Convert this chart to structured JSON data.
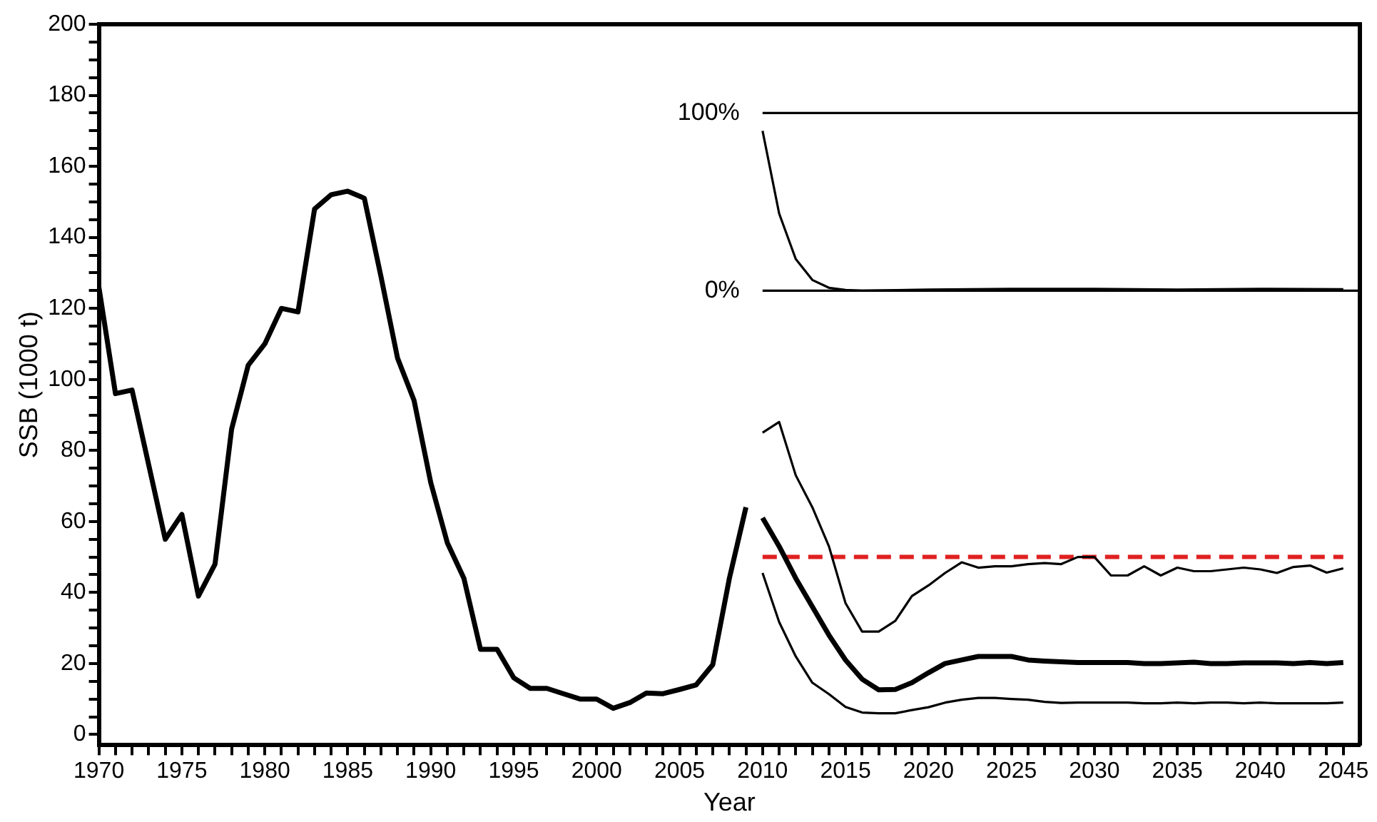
{
  "chart_data": {
    "type": "line",
    "xlabel": "Year",
    "ylabel": "SSB (1000 t)",
    "xlim": [
      1970,
      2046
    ],
    "ylim": [
      -3,
      200
    ],
    "xticks": [
      1970,
      {
        "value": 1971,
        "label": null
      },
      {
        "value": 1972,
        "label": null
      },
      {
        "value": 1973,
        "label": null
      },
      {
        "value": 1974,
        "label": null
      },
      1975,
      {
        "value": 1976,
        "label": null
      },
      {
        "value": 1977,
        "label": null
      },
      {
        "value": 1978,
        "label": null
      },
      {
        "value": 1979,
        "label": null
      },
      1980,
      {
        "value": 1981,
        "label": null
      },
      {
        "value": 1982,
        "label": null
      },
      {
        "value": 1983,
        "label": null
      },
      {
        "value": 1984,
        "label": null
      },
      1985,
      {
        "value": 1986,
        "label": null
      },
      {
        "value": 1987,
        "label": null
      },
      {
        "value": 1988,
        "label": null
      },
      {
        "value": 1989,
        "label": null
      },
      1990,
      {
        "value": 1991,
        "label": null
      },
      {
        "value": 1992,
        "label": null
      },
      {
        "value": 1993,
        "label": null
      },
      {
        "value": 1994,
        "label": null
      },
      1995,
      {
        "value": 1996,
        "label": null
      },
      {
        "value": 1997,
        "label": null
      },
      {
        "value": 1998,
        "label": null
      },
      {
        "value": 1999,
        "label": null
      },
      2000,
      {
        "value": 2001,
        "label": null
      },
      {
        "value": 2002,
        "label": null
      },
      {
        "value": 2003,
        "label": null
      },
      {
        "value": 2004,
        "label": null
      },
      2005,
      {
        "value": 2006,
        "label": null
      },
      {
        "value": 2007,
        "label": null
      },
      {
        "value": 2008,
        "label": null
      },
      {
        "value": 2009,
        "label": null
      },
      2010,
      {
        "value": 2011,
        "label": null
      },
      {
        "value": 2012,
        "label": null
      },
      {
        "value": 2013,
        "label": null
      },
      {
        "value": 2014,
        "label": null
      },
      2015,
      {
        "value": 2016,
        "label": null
      },
      {
        "value": 2017,
        "label": null
      },
      {
        "value": 2018,
        "label": null
      },
      {
        "value": 2019,
        "label": null
      },
      2020,
      {
        "value": 2021,
        "label": null
      },
      {
        "value": 2022,
        "label": null
      },
      {
        "value": 2023,
        "label": null
      },
      {
        "value": 2024,
        "label": null
      },
      2025,
      {
        "value": 2026,
        "label": null
      },
      {
        "value": 2027,
        "label": null
      },
      {
        "value": 2028,
        "label": null
      },
      {
        "value": 2029,
        "label": null
      },
      2030,
      {
        "value": 2031,
        "label": null
      },
      {
        "value": 2032,
        "label": null
      },
      {
        "value": 2033,
        "label": null
      },
      {
        "value": 2034,
        "label": null
      },
      2035,
      {
        "value": 2036,
        "label": null
      },
      {
        "value": 2037,
        "label": null
      },
      {
        "value": 2038,
        "label": null
      },
      {
        "value": 2039,
        "label": null
      },
      2040,
      {
        "value": 2041,
        "label": null
      },
      {
        "value": 2042,
        "label": null
      },
      {
        "value": 2043,
        "label": null
      },
      {
        "value": 2044,
        "label": null
      },
      2045
    ],
    "yticks": [
      0,
      {
        "value": 5,
        "label": null
      },
      {
        "value": 10,
        "label": null
      },
      {
        "value": 15,
        "label": null
      },
      20,
      {
        "value": 25,
        "label": null
      },
      {
        "value": 30,
        "label": null
      },
      {
        "value": 35,
        "label": null
      },
      40,
      {
        "value": 45,
        "label": null
      },
      {
        "value": 50,
        "label": null
      },
      {
        "value": 55,
        "label": null
      },
      60,
      {
        "value": 65,
        "label": null
      },
      {
        "value": 70,
        "label": null
      },
      {
        "value": 75,
        "label": null
      },
      80,
      {
        "value": 85,
        "label": null
      },
      {
        "value": 90,
        "label": null
      },
      {
        "value": 95,
        "label": null
      },
      100,
      {
        "value": 105,
        "label": null
      },
      {
        "value": 110,
        "label": null
      },
      {
        "value": 115,
        "label": null
      },
      120,
      {
        "value": 125,
        "label": null
      },
      {
        "value": 130,
        "label": null
      },
      {
        "value": 135,
        "label": null
      },
      140,
      {
        "value": 145,
        "label": null
      },
      {
        "value": 150,
        "label": null
      },
      {
        "value": 155,
        "label": null
      },
      160,
      {
        "value": 165,
        "label": null
      },
      {
        "value": 170,
        "label": null
      },
      {
        "value": 175,
        "label": null
      },
      180,
      {
        "value": 185,
        "label": null
      },
      {
        "value": 190,
        "label": null
      },
      {
        "value": 195,
        "label": null
      },
      200
    ],
    "series": [
      {
        "color": "#000000",
        "x": [
          1970,
          1971,
          1972,
          1973,
          1974,
          1975,
          1976,
          1977,
          1978,
          1979,
          1980,
          1981,
          1982,
          1983,
          1984,
          1985,
          1986,
          1987,
          1988,
          1989,
          1990,
          1991,
          1992,
          1993,
          1994,
          1995,
          1996,
          1997,
          1998,
          1999,
          2000,
          2001,
          2002,
          2003,
          2004,
          2005,
          2006,
          2007,
          2008,
          2009
        ],
        "values": [
          126,
          96,
          97,
          76,
          55,
          62,
          39,
          48,
          86,
          104,
          110,
          120,
          119,
          148,
          152,
          153,
          151,
          129,
          106,
          94,
          71,
          54,
          44,
          24,
          24,
          16,
          13,
          13,
          11.5,
          10,
          10,
          7.4,
          9,
          11.7,
          11.5,
          12.7,
          14,
          19.7,
          44,
          64
        ]
      },
      {
        "color": "#000000",
        "x": [
          2010,
          2011,
          2012,
          2013,
          2014,
          2015,
          2016,
          2017,
          2018,
          2019,
          2020,
          2021,
          2022,
          2023,
          2024,
          2025,
          2026,
          2027,
          2028,
          2029,
          2030,
          2031,
          2032,
          2033,
          2034,
          2035,
          2036,
          2037,
          2038,
          2039,
          2040,
          2041,
          2042,
          2043,
          2044,
          2045
        ],
        "values": [
          61,
          53,
          44,
          36,
          28,
          21,
          15.6,
          12.6,
          12.7,
          14.6,
          17.4,
          20,
          21,
          22,
          22,
          22,
          21,
          20.7,
          20.5,
          20.3,
          20.3,
          20.3,
          20.3,
          20,
          20,
          20.2,
          20.4,
          20,
          20,
          20.2,
          20.2,
          20.2,
          20,
          20.3,
          20,
          20.3
        ]
      },
      {
        "color": "#000000",
        "x": [
          2010,
          2011,
          2012,
          2013,
          2014,
          2015,
          2016,
          2017,
          2018,
          2019,
          2020,
          2021,
          2022,
          2023,
          2024,
          2025,
          2026,
          2027,
          2028,
          2029,
          2030,
          2031,
          2032,
          2033,
          2034,
          2035,
          2036,
          2037,
          2038,
          2039,
          2040,
          2041,
          2042,
          2043,
          2044,
          2045
        ],
        "values": [
          85,
          88,
          73,
          64,
          53,
          37,
          29,
          29,
          32,
          39,
          42,
          45.5,
          48.5,
          47,
          47.4,
          47.4,
          48,
          48.3,
          48,
          50,
          50,
          44.8,
          44.8,
          47.4,
          44.8,
          47,
          46,
          46,
          46.5,
          47,
          46.5,
          45.5,
          47.2,
          47.6,
          45.6,
          46.8
        ]
      },
      {
        "color": "#000000",
        "x": [
          2010,
          2011,
          2012,
          2013,
          2014,
          2015,
          2016,
          2017,
          2018,
          2019,
          2020,
          2021,
          2022,
          2023,
          2024,
          2025,
          2026,
          2027,
          2028,
          2029,
          2030,
          2031,
          2032,
          2033,
          2034,
          2035,
          2036,
          2037,
          2038,
          2039,
          2040,
          2041,
          2042,
          2043,
          2044,
          2045
        ],
        "values": [
          45.5,
          31.7,
          22,
          14.6,
          11.4,
          7.8,
          6.2,
          6,
          6,
          6.9,
          7.7,
          9,
          9.8,
          10.3,
          10.3,
          10,
          9.8,
          9.2,
          8.9,
          9,
          9,
          9,
          9,
          8.8,
          8.8,
          9,
          8.8,
          9,
          9,
          8.8,
          9,
          8.8,
          8.8,
          8.8,
          8.8,
          9
        ]
      },
      {
        "color": "#e02020",
        "line_style": "dashed",
        "x": [
          2010,
          2045
        ],
        "values": [
          50,
          50
        ]
      },
      {
        "color": "#000000",
        "x": [
          2010,
          2046
        ],
        "values": [
          175,
          175
        ]
      },
      {
        "color": "#000000",
        "x": [
          2010,
          2046
        ],
        "values": [
          125,
          125
        ]
      },
      {
        "color": "#000000",
        "x": [
          2010,
          2011,
          2012,
          2013,
          2014,
          2015,
          2016,
          2020,
          2025,
          2030,
          2035,
          2040,
          2045
        ],
        "values": [
          170,
          146.7,
          133.9,
          128,
          125.8,
          125.2,
          125,
          125.3,
          125.5,
          125.5,
          125.3,
          125.5,
          125.4
        ]
      }
    ],
    "annotations": [
      {
        "text": "100%",
        "x": 2010,
        "y": 175
      },
      {
        "text": "0%",
        "x": 2010,
        "y": 125
      }
    ]
  }
}
